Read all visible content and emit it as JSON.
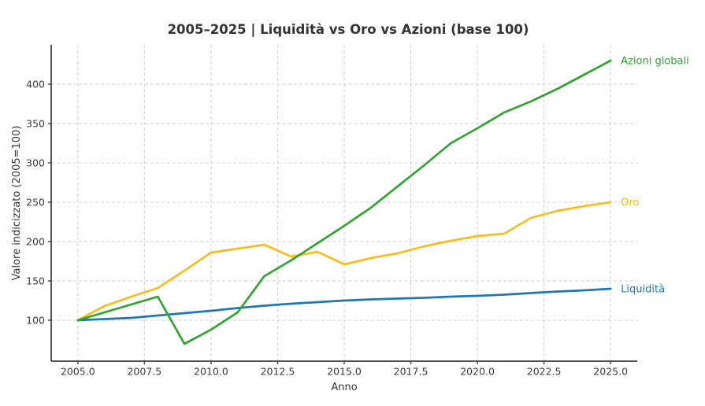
{
  "chart_data": {
    "type": "line",
    "title": "2005–2025 | Liquidità vs Oro vs Azioni (base 100)",
    "xlabel": "Anno",
    "ylabel": "Valore indicizzato (2005=100)",
    "x": [
      2005,
      2006,
      2007,
      2008,
      2009,
      2010,
      2011,
      2012,
      2013,
      2014,
      2015,
      2016,
      2017,
      2018,
      2019,
      2020,
      2021,
      2022,
      2023,
      2024,
      2025
    ],
    "series": [
      {
        "name": "Liquidità",
        "color": "#1f77b4",
        "values": [
          100,
          101.5,
          103,
          106,
          109,
          112,
          115.5,
          118.5,
          121,
          123,
          125,
          126.5,
          127.5,
          128.5,
          130,
          131,
          132.5,
          134.5,
          136.5,
          138,
          140
        ]
      },
      {
        "name": "Oro",
        "color": "#f9bc1f",
        "values": [
          100,
          118,
          130,
          141,
          163,
          186,
          191,
          196,
          181,
          187,
          171,
          179,
          185,
          194,
          201,
          207,
          210,
          230,
          239,
          245,
          250
        ]
      },
      {
        "name": "Azioni globali",
        "color": "#30a330",
        "values": [
          100,
          110,
          120,
          130,
          70,
          88,
          110,
          156,
          176,
          198,
          220,
          243,
          270,
          297,
          325,
          344,
          364,
          378,
          394,
          412,
          430
        ]
      }
    ],
    "xticks": {
      "values": [
        2005,
        2007.5,
        2010,
        2012.5,
        2015,
        2017.5,
        2020,
        2022.5,
        2025
      ],
      "labels": [
        "2005.0",
        "2007.5",
        "2010.0",
        "2012.5",
        "2015.0",
        "2017.5",
        "2020.0",
        "2022.5",
        "2025.0"
      ]
    },
    "yticks": {
      "values": [
        100,
        150,
        200,
        250,
        300,
        350,
        400
      ],
      "labels": [
        "100",
        "150",
        "200",
        "250",
        "300",
        "350",
        "400"
      ]
    },
    "xlim": [
      2004,
      2026
    ],
    "ylim": [
      48,
      450
    ],
    "grid": true,
    "legend_position": "line-end-labels",
    "style": {
      "grid_color": "#d0d0d0",
      "spine_color": "#3f3f3f",
      "tick_color": "#3f3f3f",
      "background": "#ffffff"
    }
  }
}
